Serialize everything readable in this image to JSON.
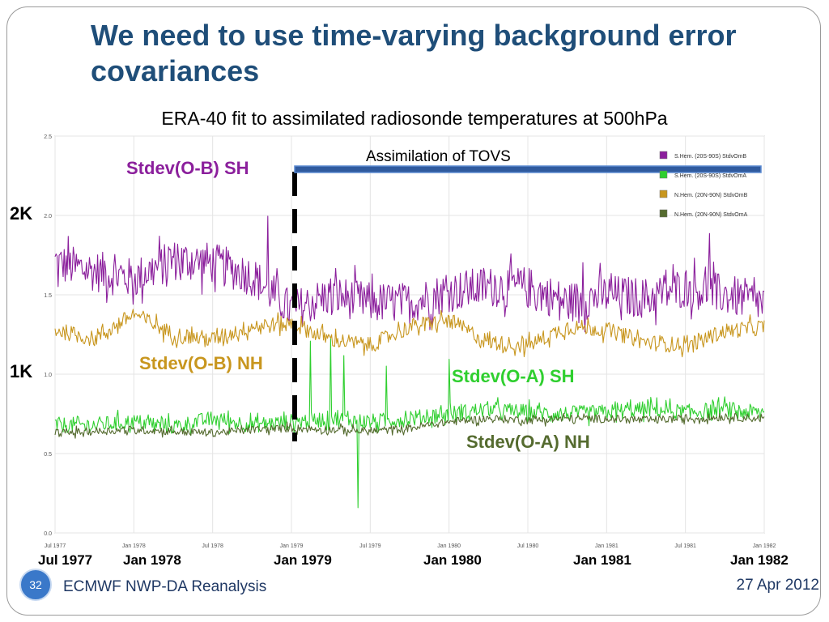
{
  "slide": {
    "title": "We need to use time-varying background error covariances",
    "subtitle": "ERA-40 fit to assimilated radiosonde temperatures at 500hPa",
    "footer": "ECMWF NWP-DA Reanalysis",
    "date": "27 Apr 2012",
    "slide_number": "32"
  },
  "annotations": {
    "tovs": "Assimilation of TOVS",
    "ob_sh": "Stdev(O-B) SH",
    "ob_nh": "Stdev(O-B) NH",
    "oa_sh": "Stdev(O-A) SH",
    "oa_nh": "Stdev(O-A) NH",
    "k2": "2K",
    "k1": "1K"
  },
  "date_labels": [
    "Jul 1977",
    "Jan 1978",
    "Jan 1979",
    "Jan 1980",
    "Jan 1981",
    "Jan 1982"
  ],
  "colors": {
    "title": "#1f4e79",
    "ob_sh": "#8b1f9c",
    "oa_sh": "#2fcf2f",
    "ob_nh": "#c8961e",
    "oa_nh": "#556b2f"
  },
  "chart_data": {
    "type": "line",
    "x_range": [
      "1977-07",
      "1982-01"
    ],
    "ylim": [
      0,
      2.5
    ],
    "yticks": [
      "0.0",
      "0.5",
      "1.0",
      "1.5",
      "2.0",
      "2.5"
    ],
    "xticks": [
      "Jul 1977",
      "Jan 1978",
      "Jul 1978",
      "Jan 1979",
      "Jul 1979",
      "Jan 1980",
      "Jul 1980",
      "Jan 1981",
      "Jul 1981",
      "Jan 1982"
    ],
    "grid": true,
    "legend_position": "top-right",
    "tovs_start": "1979-01",
    "series": [
      {
        "name": "S.Hem. (20S-90S) StdvOmB",
        "color": "#8b1f9c",
        "x": [
          "1977-07",
          "1977-10",
          "1978-01",
          "1978-04",
          "1978-07",
          "1978-10",
          "1979-01",
          "1979-04",
          "1979-07",
          "1979-10",
          "1980-01",
          "1980-04",
          "1980-07",
          "1980-10",
          "1981-01",
          "1981-04",
          "1981-07",
          "1981-10",
          "1982-01"
        ],
        "values": [
          1.7,
          1.65,
          1.6,
          1.72,
          1.7,
          1.62,
          1.4,
          1.5,
          1.45,
          1.45,
          1.52,
          1.55,
          1.55,
          1.45,
          1.5,
          1.48,
          1.55,
          1.5,
          1.45
        ]
      },
      {
        "name": "S.Hem. (20S-90S) StdvOmA",
        "color": "#2fcf2f",
        "x": [
          "1977-07",
          "1977-10",
          "1978-01",
          "1978-04",
          "1978-07",
          "1978-10",
          "1979-01",
          "1979-04",
          "1979-07",
          "1979-10",
          "1980-01",
          "1980-04",
          "1980-07",
          "1980-10",
          "1981-01",
          "1981-04",
          "1981-07",
          "1981-10",
          "1982-01"
        ],
        "values": [
          0.68,
          0.68,
          0.7,
          0.67,
          0.72,
          0.68,
          0.7,
          0.72,
          0.7,
          0.72,
          0.75,
          0.78,
          0.76,
          0.75,
          0.76,
          0.78,
          0.76,
          0.78,
          0.75
        ]
      },
      {
        "name": "N.Hem. (20N-90N) StdvOmB",
        "color": "#c8961e",
        "x": [
          "1977-07",
          "1977-10",
          "1978-01",
          "1978-04",
          "1978-07",
          "1978-10",
          "1979-01",
          "1979-04",
          "1979-07",
          "1979-10",
          "1980-01",
          "1980-04",
          "1980-07",
          "1980-10",
          "1981-01",
          "1981-04",
          "1981-07",
          "1981-10",
          "1982-01"
        ],
        "values": [
          1.28,
          1.22,
          1.38,
          1.25,
          1.22,
          1.3,
          1.32,
          1.22,
          1.18,
          1.3,
          1.34,
          1.2,
          1.18,
          1.3,
          1.28,
          1.2,
          1.18,
          1.27,
          1.3
        ]
      },
      {
        "name": "N.Hem. (20N-90N) StdvOmA",
        "color": "#556b2f",
        "x": [
          "1977-07",
          "1977-10",
          "1978-01",
          "1978-04",
          "1978-07",
          "1978-10",
          "1979-01",
          "1979-04",
          "1979-07",
          "1979-10",
          "1980-01",
          "1980-04",
          "1980-07",
          "1980-10",
          "1981-01",
          "1981-04",
          "1981-07",
          "1981-10",
          "1982-01"
        ],
        "values": [
          0.63,
          0.64,
          0.65,
          0.64,
          0.63,
          0.65,
          0.66,
          0.65,
          0.64,
          0.66,
          0.7,
          0.72,
          0.71,
          0.72,
          0.72,
          0.71,
          0.72,
          0.73,
          0.72
        ]
      }
    ]
  }
}
